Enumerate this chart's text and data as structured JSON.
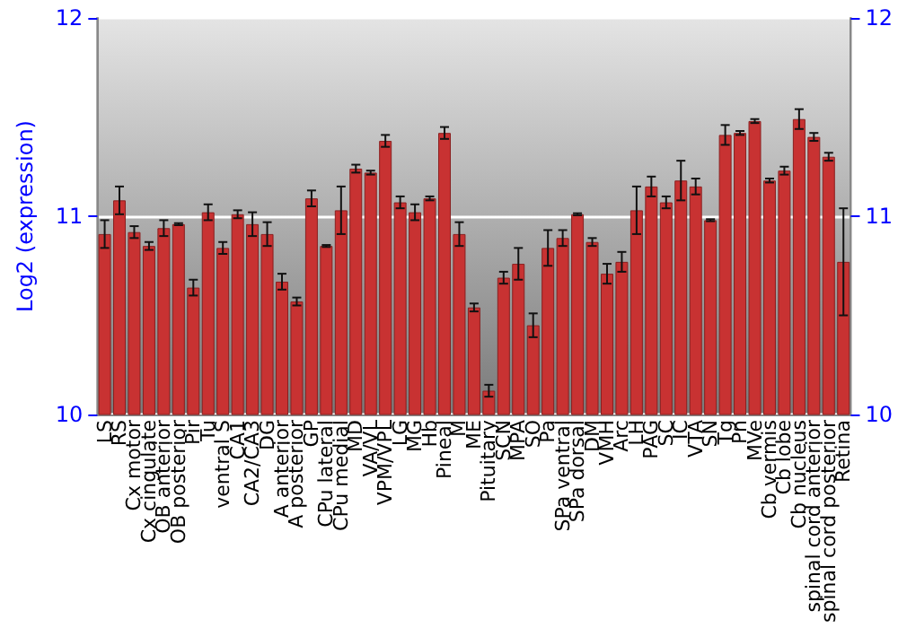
{
  "chart_data": {
    "type": "bar",
    "ylabel": "Log2 (expression)",
    "categories": [
      "LS",
      "RS",
      "Cx motor",
      "Cx cingulate",
      "OB anterior",
      "OB posterior",
      "Pir",
      "Tu",
      "ventral S",
      "CA1",
      "CA2/CA3",
      "DG",
      "A anterior",
      "A posterior",
      "GP",
      "CPu lateral",
      "CPu medial",
      "MD",
      "VA/VL",
      "VPM/VPL",
      "LG",
      "MG",
      "Hb",
      "Pineal",
      "M",
      "ME",
      "Pituitary",
      "SCN",
      "MPA",
      "SO",
      "Pa",
      "SPa ventral",
      "SPa dorsal",
      "DM",
      "VMH",
      "Arc",
      "LH",
      "PAG",
      "SC",
      "IC",
      "VTA",
      "SN",
      "Tg",
      "Pn",
      "MVe",
      "Cb vermis",
      "Cb lobe",
      "Cb nucleus",
      "spinal cord anterior",
      "spinal cord posterior",
      "Retina"
    ],
    "values": [
      10.91,
      11.08,
      10.92,
      10.85,
      10.94,
      10.96,
      10.64,
      11.02,
      10.84,
      11.01,
      10.96,
      10.91,
      10.67,
      10.57,
      11.09,
      10.85,
      11.03,
      11.24,
      11.22,
      11.38,
      11.07,
      11.02,
      11.09,
      11.42,
      10.91,
      10.54,
      10.12,
      10.69,
      10.76,
      10.45,
      10.84,
      10.89,
      11.01,
      10.87,
      10.71,
      10.77,
      11.03,
      11.15,
      11.07,
      11.18,
      11.15,
      10.98,
      11.41,
      11.42,
      11.48,
      11.18,
      11.23,
      11.49,
      11.4,
      11.3,
      10.77
    ],
    "errors": [
      0.07,
      0.07,
      0.03,
      0.02,
      0.04,
      0.005,
      0.04,
      0.04,
      0.03,
      0.02,
      0.06,
      0.06,
      0.04,
      0.02,
      0.04,
      0.005,
      0.12,
      0.02,
      0.01,
      0.03,
      0.03,
      0.04,
      0.01,
      0.03,
      0.06,
      0.02,
      0.03,
      0.03,
      0.08,
      0.06,
      0.09,
      0.04,
      0.005,
      0.02,
      0.05,
      0.05,
      0.12,
      0.05,
      0.03,
      0.1,
      0.04,
      0.005,
      0.05,
      0.01,
      0.01,
      0.01,
      0.02,
      0.05,
      0.02,
      0.02,
      0.27
    ],
    "color": "#c83232",
    "ylim": [
      10,
      12
    ],
    "yticks": [
      10,
      11,
      12
    ],
    "y2lim": [
      10,
      12
    ],
    "y2ticks": [
      10,
      11,
      12
    ],
    "grid": "y"
  }
}
